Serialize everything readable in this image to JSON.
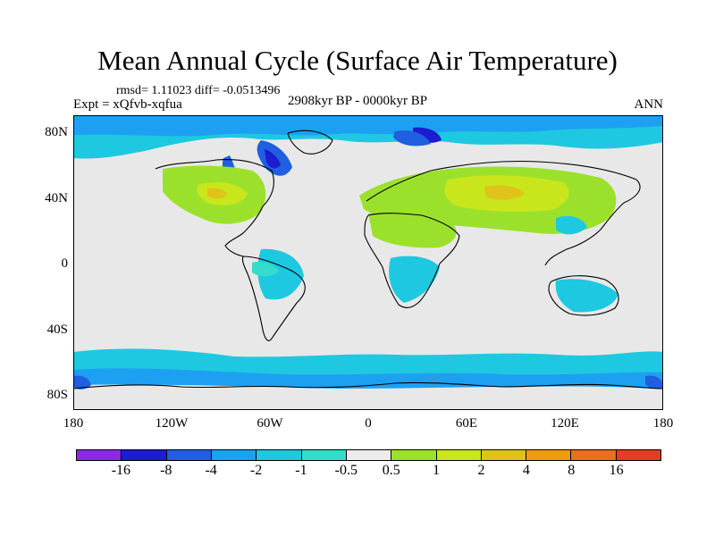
{
  "title": "Mean Annual Cycle (Surface Air Temperature)",
  "stats": "rmsd= 1.11023 diff= -0.0513496",
  "left_label": "Expt = xQfvb-xqfua",
  "center_label": "2908kyr BP - 0000kyr BP",
  "right_label": "ANN",
  "lat_labels": [
    "80N",
    "40N",
    "0",
    "40S",
    "80S"
  ],
  "lon_labels": [
    "180",
    "120W",
    "60W",
    "0",
    "60E",
    "120E",
    "180"
  ],
  "colorbar": {
    "levels": [
      "-16",
      "-8",
      "-4",
      "-2",
      "-1",
      "-0.5",
      "0.5",
      "1",
      "2",
      "4",
      "8",
      "16"
    ],
    "colors": [
      "#8a2be2",
      "#1c1cd0",
      "#1f5fe0",
      "#1da0f2",
      "#1ec8e0",
      "#35dccb",
      "#ececec",
      "#9be12c",
      "#c9e61c",
      "#e0c319",
      "#f09a14",
      "#e8711a",
      "#e0401f"
    ]
  }
}
